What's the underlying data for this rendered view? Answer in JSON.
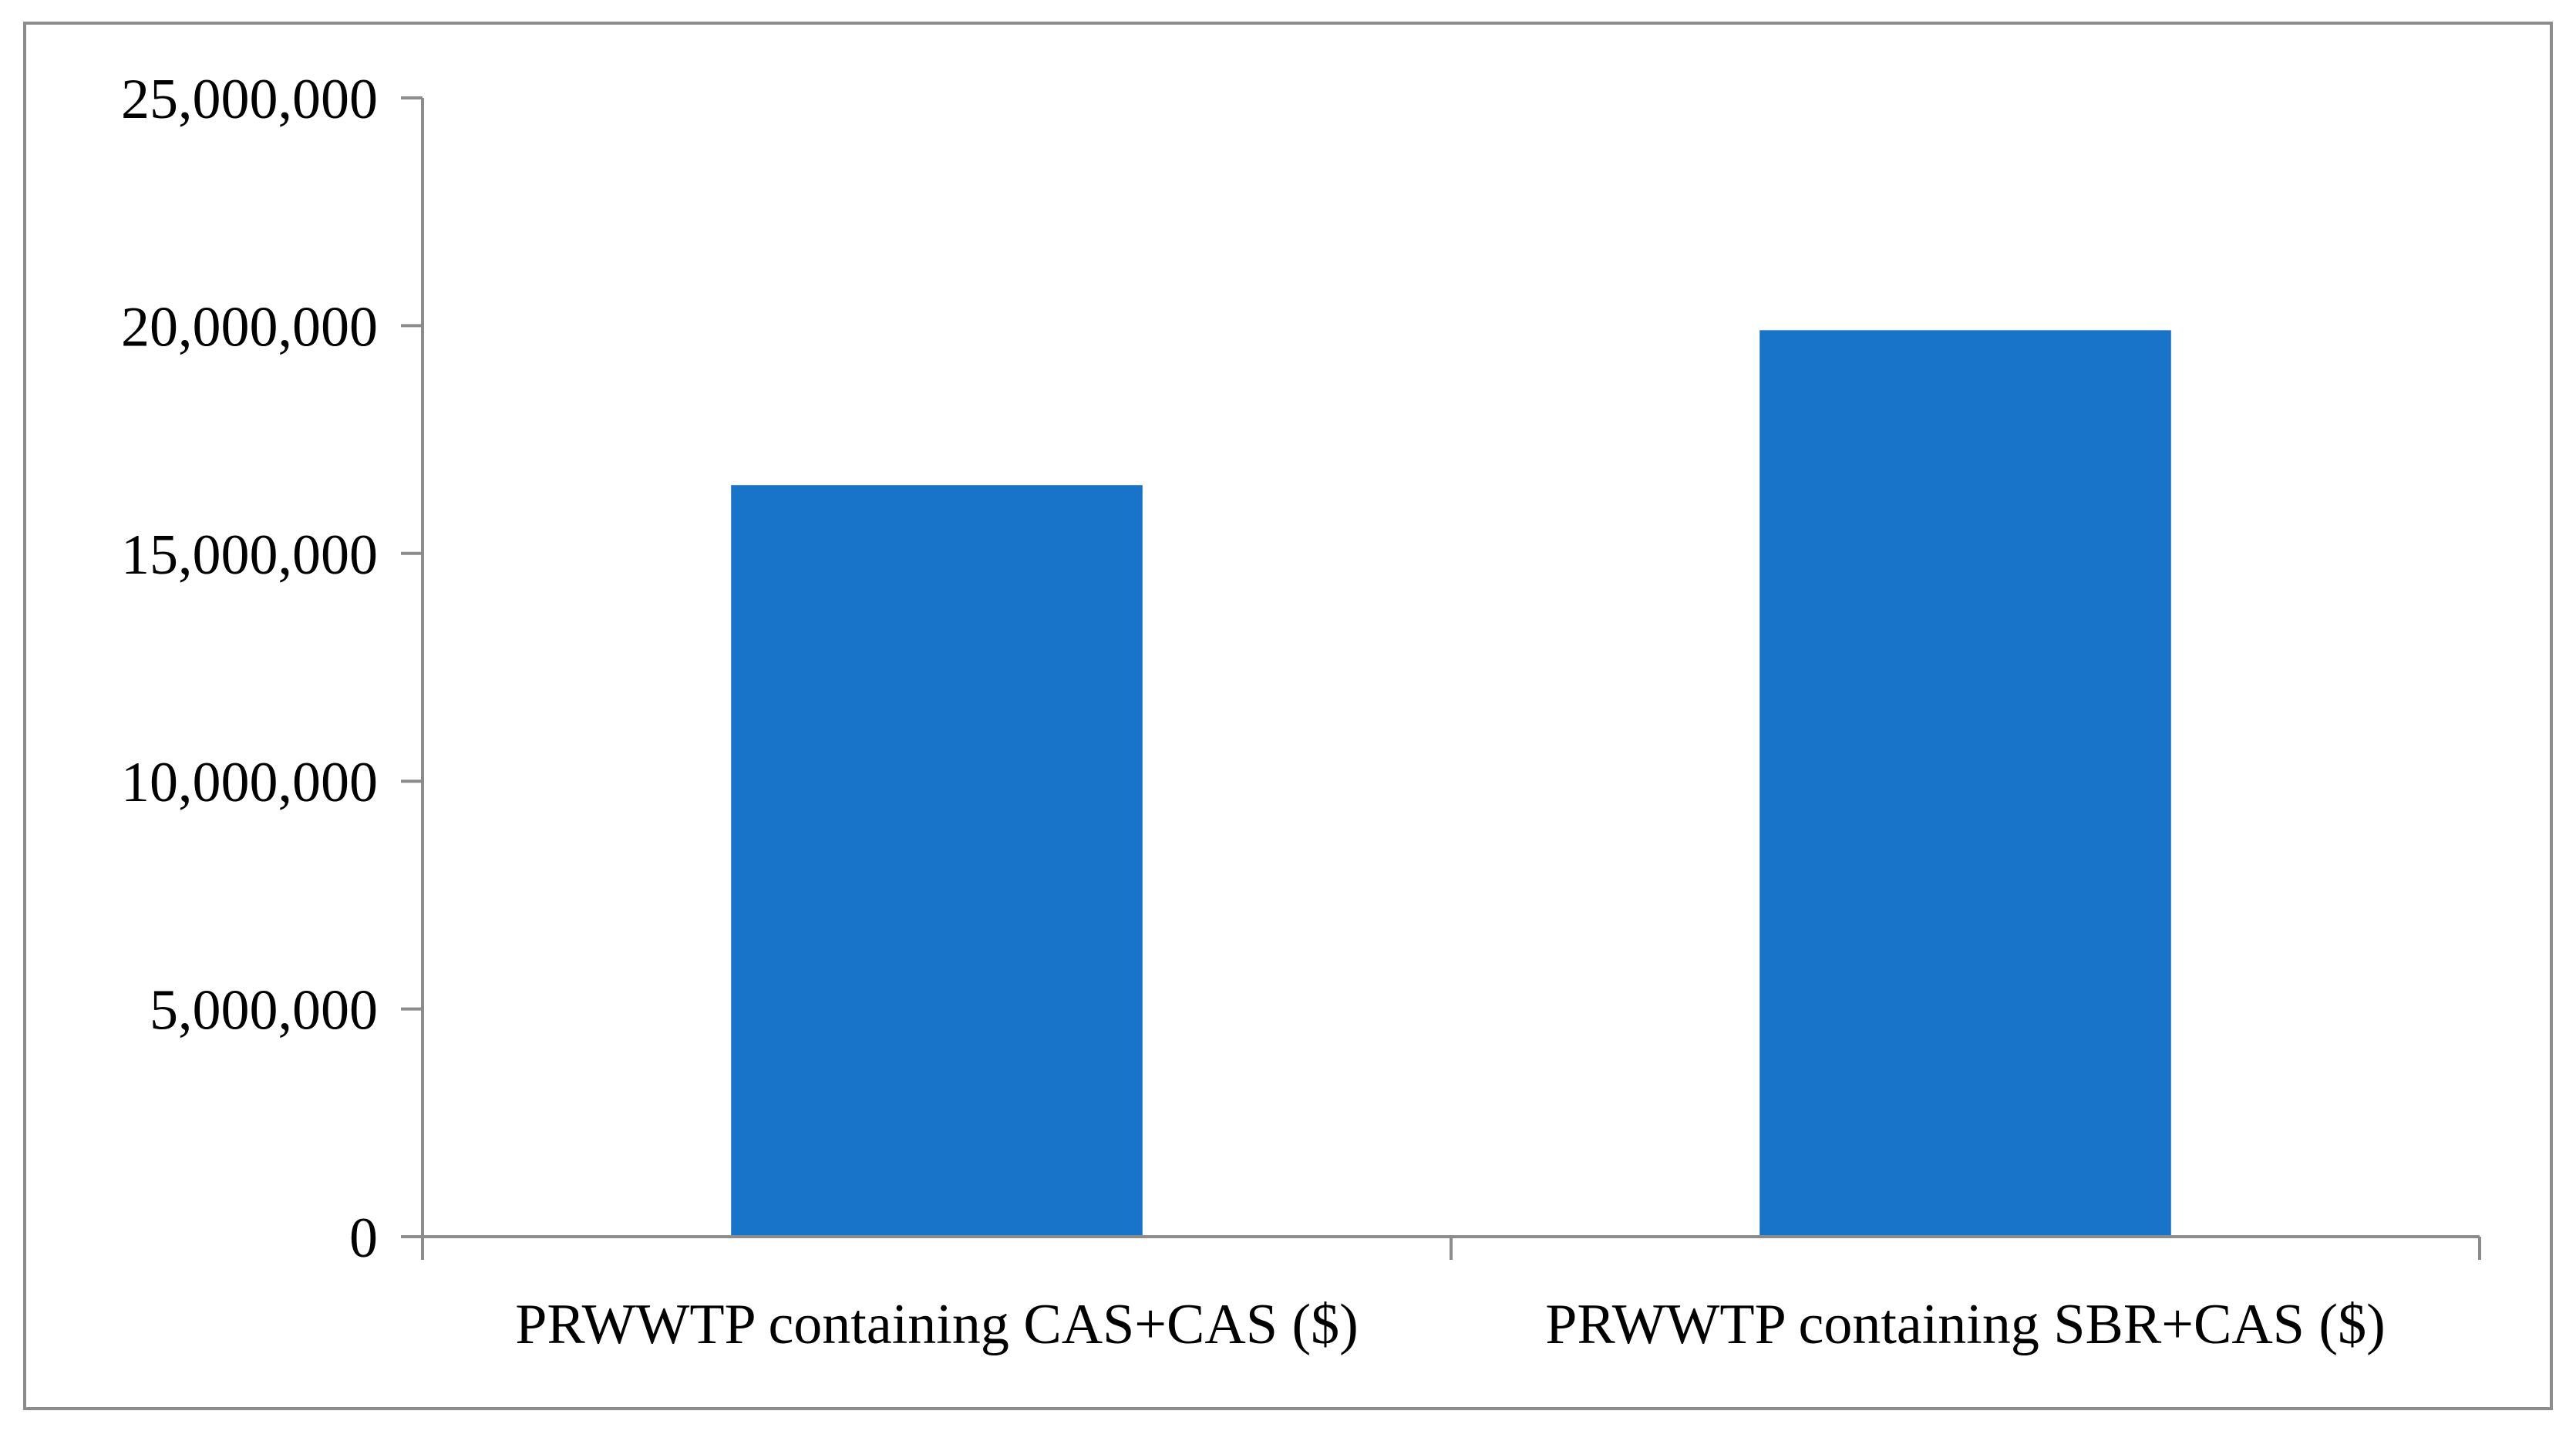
{
  "chart_data": {
    "type": "bar",
    "title": "",
    "xlabel": "",
    "ylabel": "",
    "categories": [
      "PRWWTP containing CAS+CAS ($)",
      "PRWWTP containing SBR+CAS ($)"
    ],
    "values": [
      16500000,
      19900000
    ],
    "ylim": [
      0,
      25000000
    ],
    "yticks": [
      0,
      5000000,
      10000000,
      15000000,
      20000000,
      25000000
    ],
    "ytick_labels": [
      "0",
      "5,000,000",
      "10,000,000",
      "15,000,000",
      "20,000,000",
      "25,000,000"
    ],
    "grid": false,
    "legend": "none",
    "colors": {
      "bar": "#1874C9",
      "axis": "#8c8c8c",
      "frame": "#8c8c8c"
    }
  }
}
